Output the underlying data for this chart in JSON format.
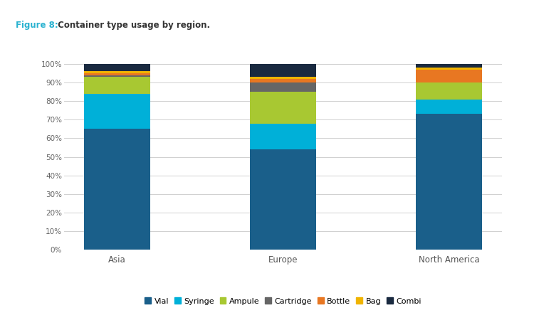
{
  "categories": [
    "Asia",
    "Europe",
    "North America"
  ],
  "series": {
    "Vial": [
      65,
      54,
      73
    ],
    "Syringe": [
      19,
      14,
      8
    ],
    "Ampule": [
      9,
      17,
      9
    ],
    "Cartridge": [
      1,
      5,
      0
    ],
    "Bottle": [
      1,
      2,
      7
    ],
    "Bag": [
      1,
      1,
      1
    ],
    "Combi": [
      4,
      7,
      2
    ]
  },
  "colors": {
    "Vial": "#1a5f8a",
    "Syringe": "#00b0d8",
    "Ampule": "#a8c832",
    "Cartridge": "#666666",
    "Bottle": "#e87722",
    "Bag": "#f0b400",
    "Combi": "#1a2a40"
  },
  "title_label": "Figure 8:",
  "title_text": " Container type usage by region.",
  "ylim": [
    0,
    100
  ],
  "yticks": [
    0,
    10,
    20,
    30,
    40,
    50,
    60,
    70,
    80,
    90,
    100
  ],
  "ytick_labels": [
    "0%",
    "10%",
    "20%",
    "30%",
    "40%",
    "50%",
    "60%",
    "70%",
    "80%",
    "90%",
    "100%"
  ],
  "background_color": "#ffffff",
  "grid_color": "#d0d0d0",
  "bar_width": 0.4
}
